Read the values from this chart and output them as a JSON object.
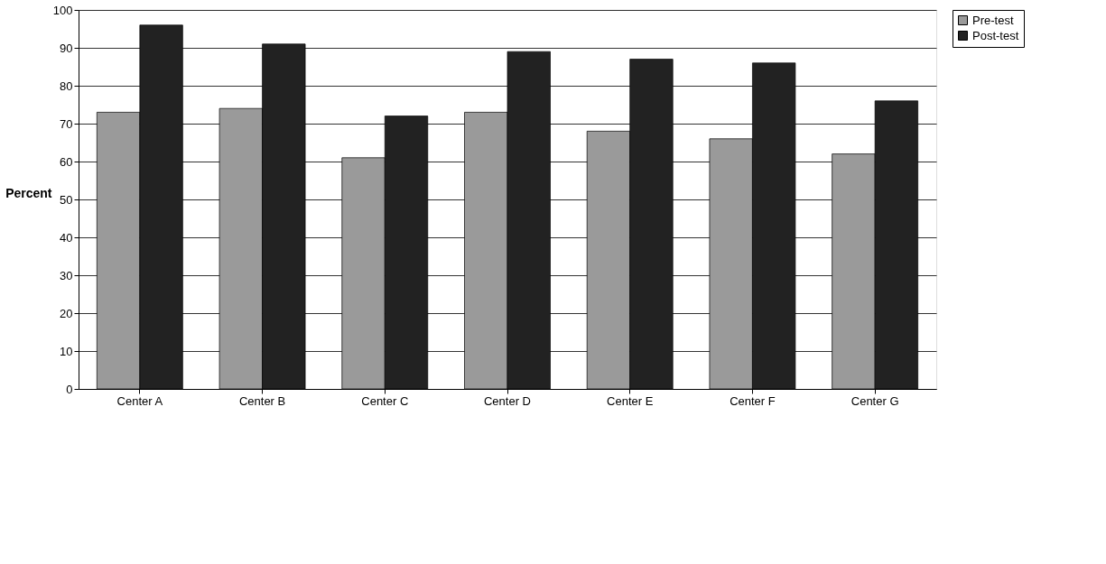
{
  "chart_data": {
    "type": "bar",
    "ylabel": "Percent",
    "categories": [
      "Center A",
      "Center B",
      "Center C",
      "Center D",
      "Center E",
      "Center F",
      "Center G"
    ],
    "series": [
      {
        "name": "Pre-test",
        "color": "#9a9a9a",
        "values": [
          73,
          74,
          61,
          73,
          68,
          66,
          62
        ]
      },
      {
        "name": "Post-test",
        "color": "#222222",
        "values": [
          96,
          91,
          72,
          89,
          87,
          86,
          76
        ]
      }
    ],
    "ylim": [
      0,
      100
    ],
    "yticks": [
      0,
      10,
      20,
      30,
      40,
      50,
      60,
      70,
      80,
      90,
      100
    ],
    "grid": "y",
    "legend": "right"
  }
}
